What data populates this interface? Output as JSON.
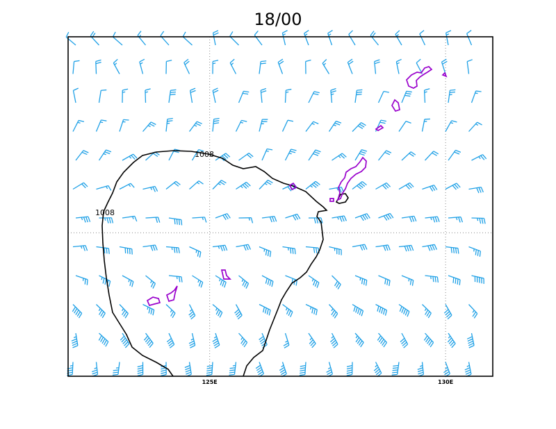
{
  "title": "18/00",
  "map": {
    "lon_range": [
      122,
      131
    ],
    "lat_range": [
      20.5,
      27.6
    ],
    "lon_ticks": [
      {
        "lon": 125,
        "label": "125E"
      },
      {
        "lon": 130,
        "label": "130E"
      }
    ],
    "lat_gridlines": [
      23.5
    ],
    "gridlines": true
  },
  "isobar": {
    "value_label": "1008",
    "color": "#000000"
  },
  "coastline_color": "#9900cc",
  "wind_barb_color": "#1ea0e6",
  "wind_barbs_icon": "wind-barb-icon"
}
